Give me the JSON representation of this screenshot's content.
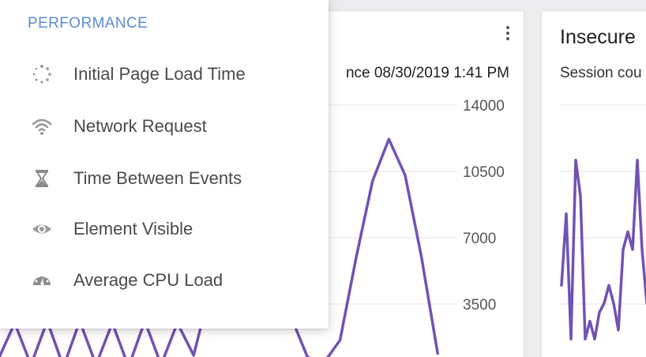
{
  "menu": {
    "heading": "PERFORMANCE",
    "items": [
      {
        "label": "Initial Page Load Time",
        "icon": "loading-spinner-icon"
      },
      {
        "label": "Network Request",
        "icon": "wifi-icon"
      },
      {
        "label": "Time Between Events",
        "icon": "hourglass-icon"
      },
      {
        "label": "Element Visible",
        "icon": "eye-icon"
      },
      {
        "label": "Average CPU Load",
        "icon": "speedometer-icon"
      }
    ]
  },
  "left_card": {
    "subtitle_visible": "nce 08/30/2019 1:41 PM",
    "menu_icon": "kebab-menu-icon"
  },
  "right_card": {
    "title_visible": "Insecure",
    "subtitle_visible": "Session cou"
  },
  "chart_data": [
    {
      "type": "line",
      "ylim": [
        0,
        14000
      ],
      "yticks": [
        "14000",
        "10500",
        "7000",
        "3500"
      ],
      "series": [
        {
          "color": "#7152b4",
          "values": [
            600,
            2500,
            300,
            2600,
            200,
            2600,
            300,
            2500,
            200,
            2600,
            300,
            2500,
            800,
            4200,
            9000,
            11700,
            12000,
            10300,
            2800,
            700,
            400,
            1600,
            6000,
            10000,
            12200,
            10300,
            6000,
            900
          ]
        }
      ]
    },
    {
      "type": "line",
      "series": [
        {
          "color": "#7152b4",
          "values": [
            4,
            8,
            1,
            11,
            9,
            1,
            2,
            1,
            2.5,
            3,
            4,
            3,
            1.5,
            6,
            7,
            6,
            11,
            6,
            3
          ]
        }
      ]
    }
  ]
}
